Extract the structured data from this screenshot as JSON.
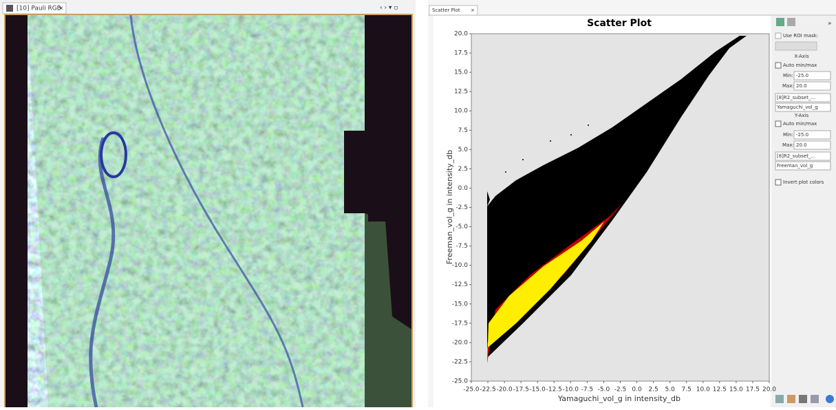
{
  "left_panel": {
    "tab": "[10] Pauli RGB"
  },
  "right_panel": {
    "tab": "Scatter Plot"
  },
  "chart_data": {
    "type": "scatter",
    "title": "Scatter Plot",
    "xlabel": "Yamaguchi_vol_g in intensity_db",
    "ylabel": "Freeman_vol_g in intensity_db",
    "xlim": [
      -25,
      20
    ],
    "ylim": [
      -25,
      20
    ],
    "xticks": [
      {
        "value": -25,
        "label": "-25.0"
      },
      {
        "value": -22.5,
        "label": "-22.5"
      },
      {
        "value": -20,
        "label": "-20.0"
      },
      {
        "value": -17.5,
        "label": "-17.5"
      },
      {
        "value": -15,
        "label": "-15.0"
      },
      {
        "value": -12.5,
        "label": "-12.5"
      },
      {
        "value": -10,
        "label": "-10.0"
      },
      {
        "value": -7.5,
        "label": "-7.5"
      },
      {
        "value": -5,
        "label": "-5.0"
      },
      {
        "value": -2.5,
        "label": "-2.5"
      },
      {
        "value": 0,
        "label": "0.0"
      },
      {
        "value": 2.5,
        "label": "2.5"
      },
      {
        "value": 5,
        "label": "5.0"
      },
      {
        "value": 7.5,
        "label": "7.5"
      },
      {
        "value": 10,
        "label": "10.0"
      },
      {
        "value": 12.5,
        "label": "12.5"
      },
      {
        "value": 15,
        "label": "15.0"
      },
      {
        "value": 17.5,
        "label": "17.5"
      },
      {
        "value": 20,
        "label": "20.0"
      }
    ],
    "yticks": [
      {
        "value": -25,
        "label": "-25.0"
      },
      {
        "value": -22.5,
        "label": "-22.5"
      },
      {
        "value": -20,
        "label": "-20.0"
      },
      {
        "value": -17.5,
        "label": "-17.5"
      },
      {
        "value": -15,
        "label": "-15.0"
      },
      {
        "value": -12.5,
        "label": "-12.5"
      },
      {
        "value": -10,
        "label": "-10.0"
      },
      {
        "value": -7.5,
        "label": "-7.5"
      },
      {
        "value": -5,
        "label": "-5.0"
      },
      {
        "value": -2.5,
        "label": "-2.5"
      },
      {
        "value": 0,
        "label": "0.0"
      },
      {
        "value": 2.5,
        "label": "2.5"
      },
      {
        "value": 5,
        "label": "5.0"
      },
      {
        "value": 7.5,
        "label": "7.5"
      },
      {
        "value": 10,
        "label": "10.0"
      },
      {
        "value": 12.5,
        "label": "12.5"
      },
      {
        "value": 15,
        "label": "15.0"
      },
      {
        "value": 17.5,
        "label": "17.5"
      },
      {
        "value": 20,
        "label": "20.0"
      }
    ]
  },
  "controls": {
    "use_roi_mask": "Use ROI mask:",
    "x_axis": {
      "heading": "X-Axis",
      "auto": "Auto min/max",
      "min_label": "Min:",
      "min_value": "-25.0",
      "max_label": "Max:",
      "max_value": "20.0",
      "band": "[8]R2_subset_...",
      "variable": "Yamaguchi_vol_g"
    },
    "y_axis": {
      "heading": "Y-Axis",
      "auto": "Auto min/max",
      "min_label": "Min:",
      "min_value": "-25.0",
      "max_label": "Max:",
      "max_value": "20.0",
      "band": "[8]R2_subset_...",
      "variable": "Freeman_vol_g"
    },
    "invert": "Invert plot colors"
  }
}
